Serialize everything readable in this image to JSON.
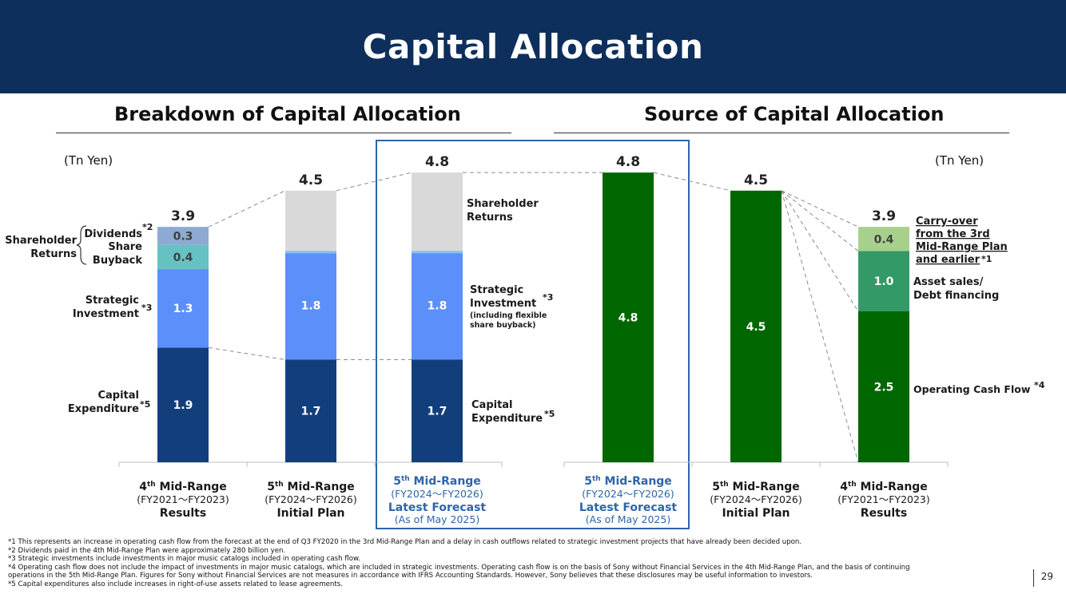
{
  "title": "Capital Allocation",
  "left_section_title": "Breakdown of Capital Allocation",
  "right_section_title": "Source of Capital Allocation",
  "unit_left": "(Tn Yen)",
  "unit_right": "(Tn Yen)",
  "page_number": "29",
  "colors": {
    "header": "#0e2f5c",
    "capex": "#123f7c",
    "strategic": "#5b8ff9",
    "buyback": "#66c2c2",
    "dividends": "#8eaad3",
    "shareholder": "#d9d9d9",
    "ocf": "#006600",
    "asset_sales": "#339966",
    "carry_over": "#a8d08d",
    "highlight_border": "#2e64ab",
    "highlight_text": "#2e64ab"
  },
  "chart_data": [
    {
      "type": "bar",
      "stacked": true,
      "title": "Breakdown of Capital Allocation",
      "unit": "Tn Yen",
      "categories": [
        {
          "line1": "4",
          "sup": "th",
          "line1b": " Mid-Range",
          "line2": "(FY2021～FY2023)",
          "line3": "Results",
          "line4": "",
          "highlight": false
        },
        {
          "line1": "5",
          "sup": "th",
          "line1b": " Mid-Range",
          "line2": "(FY2024～FY2026)",
          "line3": "Initial Plan",
          "line4": "",
          "highlight": false
        },
        {
          "line1": "5",
          "sup": "th",
          "line1b": " Mid-Range",
          "line2": "(FY2024～FY2026)",
          "line3": "Latest Forecast",
          "line4": "(As of May 2025)",
          "highlight": true
        }
      ],
      "totals": [
        "3.9",
        "4.5",
        "4.8"
      ],
      "stacks": [
        [
          {
            "series": "Capital Expenditure",
            "value": 1.9,
            "label": "1.9",
            "color": "capex"
          },
          {
            "series": "Strategic Investment",
            "value": 1.3,
            "label": "1.3",
            "color": "strategic"
          },
          {
            "series": "Share Buyback",
            "value": 0.4,
            "label": "0.4",
            "color": "buyback"
          },
          {
            "series": "Dividends",
            "value": 0.3,
            "label": "0.3",
            "color": "dividends"
          }
        ],
        [
          {
            "series": "Capital Expenditure",
            "value": 1.7,
            "label": "1.7",
            "color": "capex"
          },
          {
            "series": "Strategic Investment",
            "value": 1.8,
            "label": "1.8",
            "color": "strategic"
          },
          {
            "series": "Shareholder Returns",
            "value": 1.0,
            "label": "",
            "color": "shareholder"
          }
        ],
        [
          {
            "series": "Capital Expenditure",
            "value": 1.7,
            "label": "1.7",
            "color": "capex"
          },
          {
            "series": "Strategic Investment",
            "value": 1.8,
            "label": "1.8",
            "color": "strategic"
          },
          {
            "series": "Shareholder Returns",
            "value": 1.3,
            "label": "",
            "color": "shareholder"
          }
        ]
      ],
      "left_labels": {
        "shareholder_returns": [
          "Shareholder",
          "Returns"
        ],
        "dividends": "Dividends",
        "dividends_note": "*2",
        "share_buyback": [
          "Share",
          "Buyback"
        ],
        "strategic": [
          "Strategic",
          "Investment"
        ],
        "strategic_note": "*3",
        "capex": [
          "Capital",
          "Expenditure"
        ],
        "capex_note": "*5"
      },
      "right_labels": {
        "shareholder_returns": [
          "Shareholder",
          "Returns"
        ],
        "strategic": [
          "Strategic",
          "Investment"
        ],
        "strategic_note": "*3",
        "strategic_sub": [
          "(including flexible",
          "share buyback)"
        ],
        "capex": [
          "Capital",
          "Expenditure"
        ],
        "capex_note": "*5"
      }
    },
    {
      "type": "bar",
      "stacked": true,
      "title": "Source of Capital Allocation",
      "unit": "Tn Yen",
      "categories": [
        {
          "line1": "5",
          "sup": "th",
          "line1b": " Mid-Range",
          "line2": "(FY2024～FY2026)",
          "line3": "Latest Forecast",
          "line4": "(As of May 2025)",
          "highlight": true
        },
        {
          "line1": "5",
          "sup": "th",
          "line1b": " Mid-Range",
          "line2": "(FY2024～FY2026)",
          "line3": "Initial Plan",
          "line4": "",
          "highlight": false
        },
        {
          "line1": "4",
          "sup": "th",
          "line1b": " Mid-Range",
          "line2": "(FY2021～FY2023)",
          "line3": "Results",
          "line4": "",
          "highlight": false
        }
      ],
      "totals": [
        "4.8",
        "4.5",
        "3.9"
      ],
      "stacks": [
        [
          {
            "series": "Operating Cash Flow",
            "value": 4.8,
            "label": "4.8",
            "color": "ocf"
          }
        ],
        [
          {
            "series": "Operating Cash Flow",
            "value": 4.5,
            "label": "4.5",
            "color": "ocf"
          }
        ],
        [
          {
            "series": "Operating Cash Flow",
            "value": 2.5,
            "label": "2.5",
            "color": "ocf"
          },
          {
            "series": "Asset sales/Debt financing",
            "value": 1.0,
            "label": "1.0",
            "color": "asset_sales"
          },
          {
            "series": "Carry-over from the 3rd Mid-Range Plan and earlier",
            "value": 0.4,
            "label": "0.4",
            "color": "carry_over"
          }
        ]
      ],
      "right_labels": {
        "carry_over": [
          "Carry-over",
          "from the 3rd",
          "Mid-Range Plan",
          "and earlier"
        ],
        "carry_over_note": "*1",
        "asset_sales": [
          "Asset sales/",
          "Debt financing"
        ],
        "ocf": "Operating Cash Flow",
        "ocf_note": "*4"
      }
    }
  ],
  "footnotes": [
    "*1  This represents an increase in operating cash flow from the forecast at the end of Q3 FY2020 in the 3rd Mid-Range Plan and a delay in cash outflows related to strategic investment projects that have already been decided upon.",
    "*2  Dividends paid in the 4th Mid-Range Plan were approximately 280 billion yen.",
    "*3  Strategic investments include investments in major music catalogs included in operating cash flow.",
    "*4  Operating cash flow does not include the impact of investments in major music catalogs, which are included in strategic investments. Operating cash flow is on the basis of Sony without Financial Services in the 4th Mid-Range Plan, and the basis of continuing",
    "      operations in the 5th Mid-Range Plan. Figures for Sony without Financial Services are not measures in accordance with IFRS Accounting Standards. However, Sony believes that these disclosures may be useful information to investors.",
    "*5  Capital expenditures also include increases in right-of-use assets related to lease agreements."
  ]
}
